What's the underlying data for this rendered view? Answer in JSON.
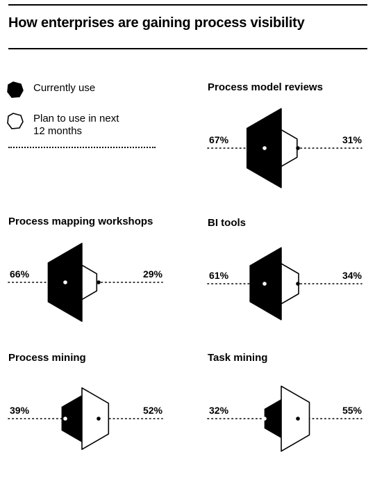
{
  "title": "How enterprises are gaining process visibility",
  "legend": {
    "current": {
      "label": "Currently use",
      "icon": "filled-hexagon-icon"
    },
    "plan": {
      "label_line1": "Plan to use in next",
      "label_line2": "12 months",
      "icon": "outline-hexagon-icon"
    }
  },
  "colors": {
    "current": "#000000",
    "plan": "#ffffff",
    "stroke": "#000000"
  },
  "chart_data": [
    {
      "type": "radial-hexagon",
      "title": "Process model reviews",
      "currently_use": 67,
      "plan_to_use": 31,
      "currently_label": "67%",
      "plan_label": "31%"
    },
    {
      "type": "radial-hexagon",
      "title": "Process mapping workshops",
      "currently_use": 66,
      "plan_to_use": 29,
      "currently_label": "66%",
      "plan_label": "29%"
    },
    {
      "type": "radial-hexagon",
      "title": "BI tools",
      "currently_use": 61,
      "plan_to_use": 34,
      "currently_label": "61%",
      "plan_label": "34%"
    },
    {
      "type": "radial-hexagon",
      "title": "Process mining",
      "currently_use": 39,
      "plan_to_use": 52,
      "currently_label": "39%",
      "plan_label": "52%"
    },
    {
      "type": "radial-hexagon",
      "title": "Task mining",
      "currently_use": 32,
      "plan_to_use": 55,
      "currently_label": "32%",
      "plan_label": "55%"
    }
  ]
}
